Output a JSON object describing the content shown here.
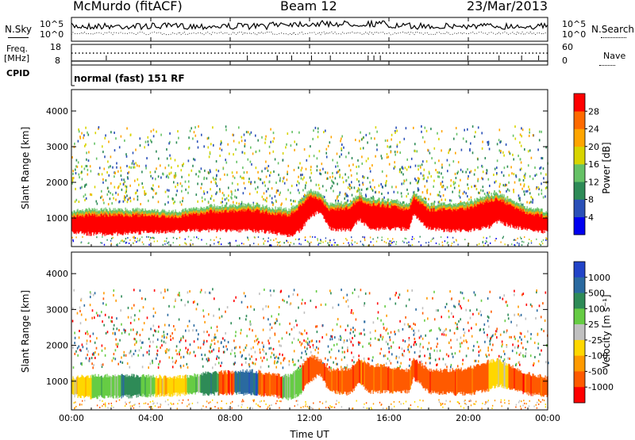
{
  "header": {
    "station": "McMurdo (fitACF)",
    "beam": "Beam 12",
    "date": "23/Mar/2013"
  },
  "noise_panel": {
    "left_label": "N.Sky",
    "right_label": "N.Search",
    "left_ticks": [
      "10^5",
      "10^0"
    ],
    "right_ticks": [
      "10^5",
      "10^0"
    ]
  },
  "freq_panel": {
    "left_label_1": "Freq.",
    "left_label_2": "[MHz]",
    "left_ticks": [
      "18",
      "8"
    ],
    "right_label": "Nave",
    "right_ticks": [
      "60",
      "0"
    ]
  },
  "cpid": {
    "label": "CPID",
    "mode": "normal (fast) 151 RF"
  },
  "chart_data": [
    {
      "type": "heatmap",
      "title": "",
      "ylabel": "Slant Range [km]",
      "xlabel": "Time UT",
      "ylim": [
        200,
        4600
      ],
      "yticks": [
        1000,
        2000,
        3000,
        4000
      ],
      "xlim": [
        "00:00",
        "24:00"
      ],
      "xtick_labels": [
        "00:00",
        "04:00",
        "08:00",
        "12:00",
        "16:00",
        "20:00",
        "00:00"
      ],
      "colorbar": {
        "label": "Power [dB]",
        "ticks": [
          "4",
          "8",
          "12",
          "16",
          "20",
          "24",
          "28"
        ],
        "colors": [
          "#0000f0",
          "#2a50b8",
          "#2e8b57",
          "#66c266",
          "#d8d400",
          "#ffa500",
          "#ff6a00",
          "#ff0000"
        ]
      },
      "series": [
        {
          "hours": [
            0,
            1,
            2,
            3,
            4,
            5,
            6,
            7,
            8,
            9,
            10,
            11,
            11.5,
            12,
            12.5,
            13,
            14,
            14.5,
            15,
            16,
            17,
            17.2,
            18,
            19,
            20,
            21,
            21.5,
            22,
            23,
            24
          ],
          "low_edge_km": [
            600,
            550,
            550,
            580,
            600,
            620,
            650,
            650,
            650,
            650,
            600,
            500,
            650,
            1000,
            1200,
            700,
            650,
            950,
            700,
            700,
            700,
            1100,
            700,
            650,
            650,
            750,
            900,
            800,
            650,
            600
          ],
          "high_edge_km": [
            1100,
            1150,
            1150,
            1150,
            1150,
            1100,
            1150,
            1250,
            1250,
            1300,
            1200,
            1150,
            1400,
            1700,
            1600,
            1300,
            1350,
            1600,
            1450,
            1400,
            1300,
            1650,
            1300,
            1300,
            1350,
            1550,
            1600,
            1450,
            1200,
            1100
          ],
          "core_power_db": 28
        }
      ]
    },
    {
      "type": "heatmap",
      "title": "",
      "ylabel": "Slant Range [km]",
      "xlabel": "Time UT",
      "ylim": [
        200,
        4600
      ],
      "yticks": [
        1000,
        2000,
        3000,
        4000
      ],
      "xlim": [
        "00:00",
        "24:00"
      ],
      "xtick_labels": [
        "00:00",
        "04:00",
        "08:00",
        "12:00",
        "16:00",
        "20:00",
        "00:00"
      ],
      "colorbar": {
        "label": "Velocity [m s⁻¹]",
        "ticks": [
          "1000",
          "500",
          "100",
          "25",
          "-25",
          "-100",
          "-500",
          "-1000"
        ],
        "colors": [
          "#2244c8",
          "#2a6aa0",
          "#2e8b57",
          "#66cc44",
          "#c0c0c0",
          "#ffd700",
          "#ff9a00",
          "#ff5a00",
          "#ff0000"
        ]
      },
      "segments": [
        {
          "start_h": 0.0,
          "end_h": 1.0,
          "velocity_class": "-100"
        },
        {
          "start_h": 1.0,
          "end_h": 2.5,
          "velocity_class": "25"
        },
        {
          "start_h": 2.5,
          "end_h": 3.5,
          "velocity_class": "100"
        },
        {
          "start_h": 3.5,
          "end_h": 4.2,
          "velocity_class": "25"
        },
        {
          "start_h": 4.2,
          "end_h": 5.8,
          "velocity_class": "-100"
        },
        {
          "start_h": 5.8,
          "end_h": 6.5,
          "velocity_class": "25"
        },
        {
          "start_h": 6.5,
          "end_h": 7.4,
          "velocity_class": "100"
        },
        {
          "start_h": 7.4,
          "end_h": 8.2,
          "velocity_class": "-500"
        },
        {
          "start_h": 8.2,
          "end_h": 9.4,
          "velocity_class": "500"
        },
        {
          "start_h": 9.4,
          "end_h": 10.6,
          "velocity_class": "-500"
        },
        {
          "start_h": 10.6,
          "end_h": 11.6,
          "velocity_class": "25"
        },
        {
          "start_h": 11.6,
          "end_h": 21.0,
          "velocity_class": "-500"
        },
        {
          "start_h": 21.0,
          "end_h": 22.0,
          "velocity_class": "-100"
        },
        {
          "start_h": 22.0,
          "end_h": 24.0,
          "velocity_class": "-500"
        }
      ]
    }
  ]
}
